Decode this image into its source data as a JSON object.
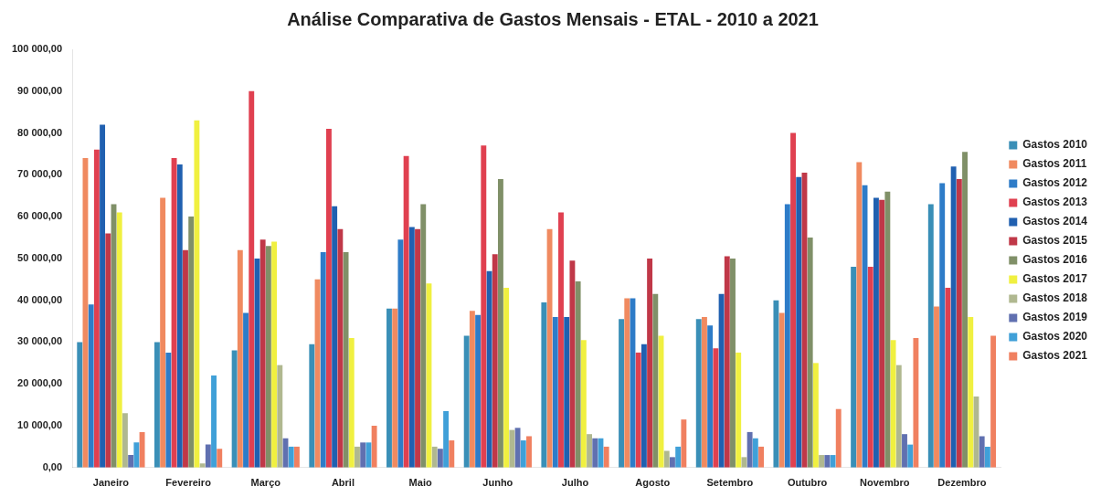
{
  "chart_data": {
    "type": "bar",
    "title": "Análise Comparativa de Gastos Mensais - ETAL - 2010 a 2021",
    "categories": [
      "Janeiro",
      "Fevereiro",
      "Março",
      "Abril",
      "Maio",
      "Junho",
      "Julho",
      "Agosto",
      "Setembro",
      "Outubro",
      "Novembro",
      "Dezembro"
    ],
    "series": [
      {
        "name": "Gastos 2010",
        "color": "#3a8fb7",
        "values": [
          30000,
          30000,
          28000,
          29500,
          38000,
          31500,
          39500,
          35500,
          35500,
          40000,
          48000,
          63000
        ]
      },
      {
        "name": "Gastos 2011",
        "color": "#f08a60",
        "values": [
          74000,
          64500,
          52000,
          45000,
          38000,
          37500,
          57000,
          40500,
          36000,
          37000,
          73000,
          38500
        ]
      },
      {
        "name": "Gastos 2012",
        "color": "#2e7cc8",
        "values": [
          39000,
          27500,
          37000,
          51500,
          54500,
          36500,
          36000,
          40500,
          34000,
          63000,
          67500,
          68000
        ]
      },
      {
        "name": "Gastos 2013",
        "color": "#e04050",
        "values": [
          76000,
          74000,
          90000,
          81000,
          74500,
          77000,
          61000,
          27500,
          28500,
          80000,
          48000,
          43000
        ]
      },
      {
        "name": "Gastos 2014",
        "color": "#2060b0",
        "values": [
          82000,
          72500,
          50000,
          62500,
          57500,
          47000,
          36000,
          29500,
          41500,
          69500,
          64500,
          72000
        ]
      },
      {
        "name": "Gastos 2015",
        "color": "#c03848",
        "values": [
          56000,
          52000,
          54500,
          57000,
          57000,
          51000,
          49500,
          50000,
          50500,
          70500,
          64000,
          69000
        ]
      },
      {
        "name": "Gastos 2016",
        "color": "#809068",
        "values": [
          63000,
          60000,
          53000,
          51500,
          63000,
          69000,
          44500,
          41500,
          50000,
          55000,
          66000,
          75500
        ]
      },
      {
        "name": "Gastos 2017",
        "color": "#f0f040",
        "values": [
          61000,
          83000,
          54000,
          31000,
          44000,
          43000,
          30500,
          31500,
          27500,
          25000,
          30500,
          36000
        ]
      },
      {
        "name": "Gastos 2018",
        "color": "#b0b890",
        "values": [
          13000,
          1000,
          24500,
          5000,
          5000,
          9000,
          8000,
          4000,
          2500,
          3000,
          24500,
          17000
        ]
      },
      {
        "name": "Gastos 2019",
        "color": "#6070b0",
        "values": [
          3000,
          5500,
          7000,
          6000,
          4500,
          9500,
          7000,
          2500,
          8500,
          3000,
          8000,
          7500
        ]
      },
      {
        "name": "Gastos 2020",
        "color": "#40a0d8",
        "values": [
          6000,
          22000,
          5000,
          6000,
          13500,
          6500,
          7000,
          5000,
          7000,
          3000,
          5500,
          5000
        ]
      },
      {
        "name": "Gastos 2021",
        "color": "#f08060",
        "values": [
          8500,
          4500,
          5000,
          10000,
          6500,
          7500,
          5000,
          11500,
          5000,
          14000,
          31000,
          31500
        ]
      }
    ],
    "ylim": [
      0,
      100000
    ],
    "yticks": [
      {
        "value": 0,
        "label": "0,00"
      },
      {
        "value": 10000,
        "label": "10 000,00"
      },
      {
        "value": 20000,
        "label": "20 000,00"
      },
      {
        "value": 30000,
        "label": "30 000,00"
      },
      {
        "value": 40000,
        "label": "40 000,00"
      },
      {
        "value": 50000,
        "label": "50 000,00"
      },
      {
        "value": 60000,
        "label": "60 000,00"
      },
      {
        "value": 70000,
        "label": "70 000,00"
      },
      {
        "value": 80000,
        "label": "80 000,00"
      },
      {
        "value": 90000,
        "label": "90 000,00"
      },
      {
        "value": 100000,
        "label": "100 000,00"
      }
    ],
    "grid": false,
    "legend": "right"
  }
}
